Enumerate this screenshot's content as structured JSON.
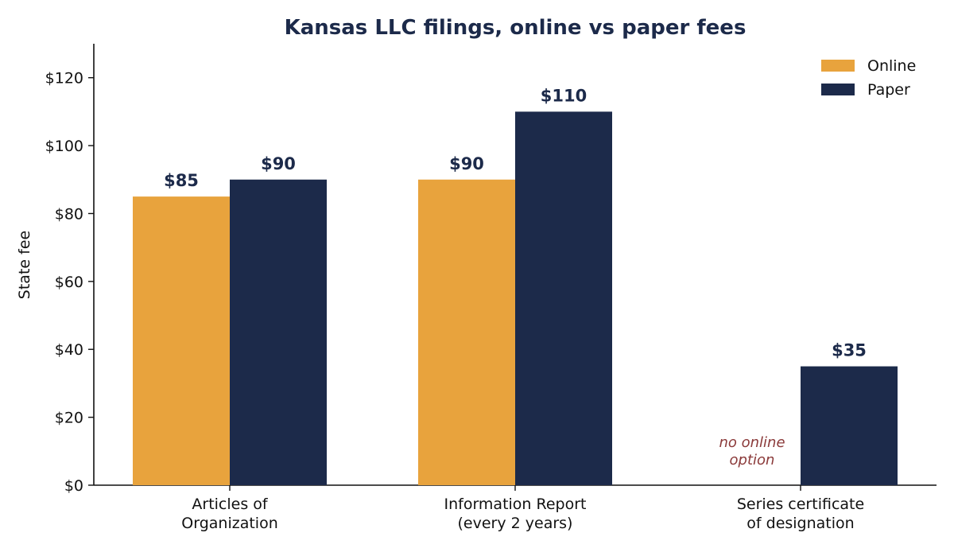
{
  "chart_data": {
    "type": "bar",
    "title": "Kansas LLC filings, online vs paper fees",
    "ylabel": "State fee",
    "xlabel": "",
    "ylim": [
      0,
      130
    ],
    "yticks": [
      0,
      20,
      40,
      60,
      80,
      100,
      120
    ],
    "ytick_labels": [
      "$0",
      "$20",
      "$40",
      "$60",
      "$80",
      "$100",
      "$120"
    ],
    "categories": [
      [
        "Articles of",
        "Organization"
      ],
      [
        "Information Report",
        "(every 2 years)"
      ],
      [
        "Series certificate",
        "of designation"
      ]
    ],
    "series": [
      {
        "name": "Online",
        "color": "#E8A33D",
        "values": [
          85,
          90,
          null
        ],
        "labels": [
          "$85",
          "$90",
          null
        ]
      },
      {
        "name": "Paper",
        "color": "#1C2A4A",
        "values": [
          90,
          110,
          35
        ],
        "labels": [
          "$90",
          "$110",
          "$35"
        ]
      }
    ],
    "annotations": [
      {
        "category_index": 2,
        "series_index": 0,
        "lines": [
          "no online",
          "option"
        ],
        "color": "#8B3A3A"
      }
    ],
    "legend_position": "top-right",
    "grid": false,
    "title_color": "#1C2A4A",
    "value_label_color": "#1C2A4A"
  }
}
